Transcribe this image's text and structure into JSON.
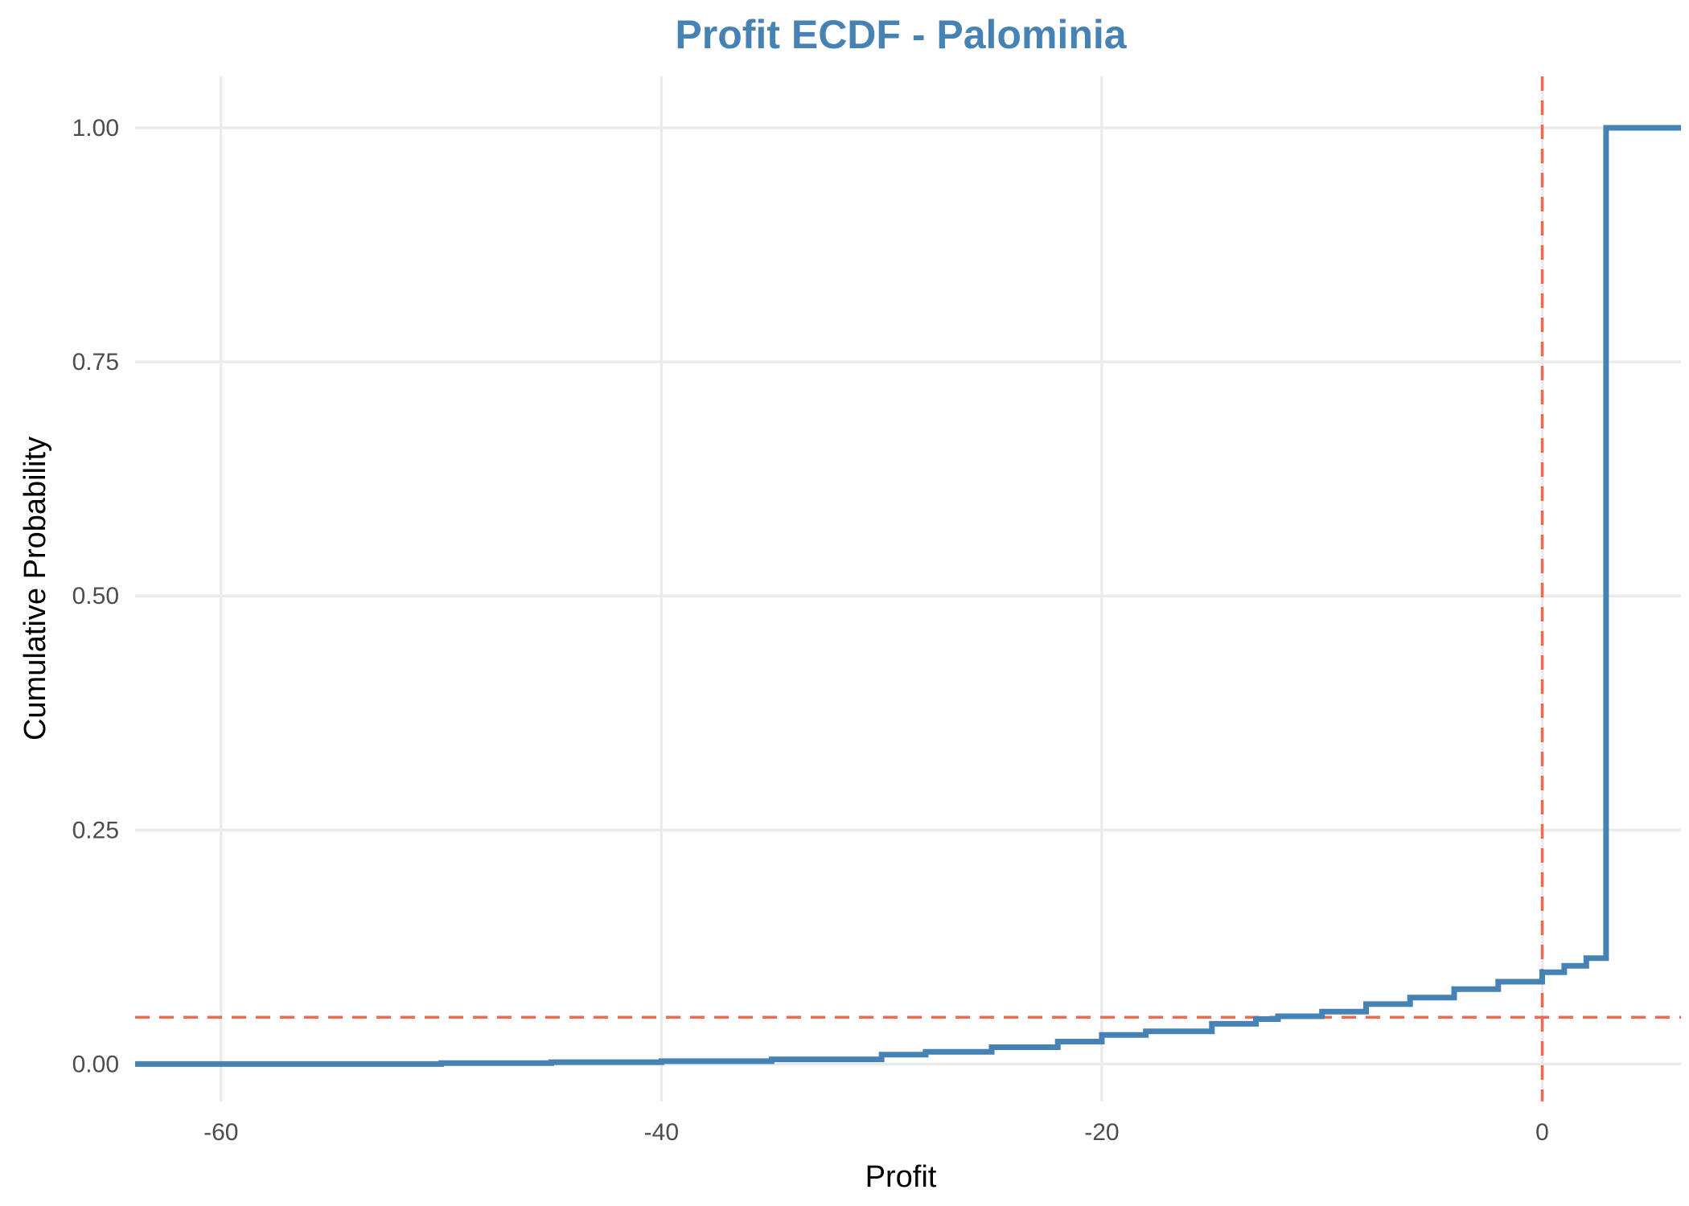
{
  "chart_data": {
    "type": "line",
    "title": "Profit ECDF - Palominia",
    "xlabel": "Profit",
    "ylabel": "Cumulative Probability",
    "xlim": [
      -63.9,
      6.3
    ],
    "ylim": [
      -0.04,
      1.055
    ],
    "x_ticks": [
      -60,
      -40,
      -20,
      0
    ],
    "x_tick_labels": [
      "-60",
      "-40",
      "-20",
      "0"
    ],
    "y_ticks": [
      0,
      0.25,
      0.5,
      0.75,
      1.0
    ],
    "y_tick_labels": [
      "0.00",
      "0.25",
      "0.50",
      "0.75",
      "1.00"
    ],
    "grid": true,
    "legend": "none",
    "series": [
      {
        "step": true,
        "values": [
          [
            -63.9,
            0.0
          ],
          [
            -60,
            0.0
          ],
          [
            -55,
            0.0
          ],
          [
            -50,
            0.001
          ],
          [
            -45,
            0.002
          ],
          [
            -40,
            0.003
          ],
          [
            -35,
            0.005
          ],
          [
            -30,
            0.01
          ],
          [
            -28,
            0.013
          ],
          [
            -25,
            0.018
          ],
          [
            -22,
            0.024
          ],
          [
            -20,
            0.031
          ],
          [
            -18,
            0.035
          ],
          [
            -15,
            0.043
          ],
          [
            -13,
            0.048
          ],
          [
            -12,
            0.051
          ],
          [
            -10,
            0.056
          ],
          [
            -8,
            0.064
          ],
          [
            -6,
            0.071
          ],
          [
            -4,
            0.08
          ],
          [
            -2,
            0.088
          ],
          [
            0,
            0.098
          ],
          [
            1,
            0.105
          ],
          [
            2,
            0.113
          ],
          [
            2.9,
            0.118
          ],
          [
            2.9,
            1.0
          ],
          [
            6.3,
            1.0
          ]
        ]
      }
    ],
    "reference_lines": [
      {
        "axis": "x",
        "value": 0,
        "style": "dashed"
      },
      {
        "axis": "y",
        "value": 0.05,
        "style": "dashed"
      }
    ],
    "colors": {
      "series": "#4682b4",
      "reference": "#ee6a50",
      "title": "#4682b4",
      "grid": "#ebebeb"
    }
  }
}
